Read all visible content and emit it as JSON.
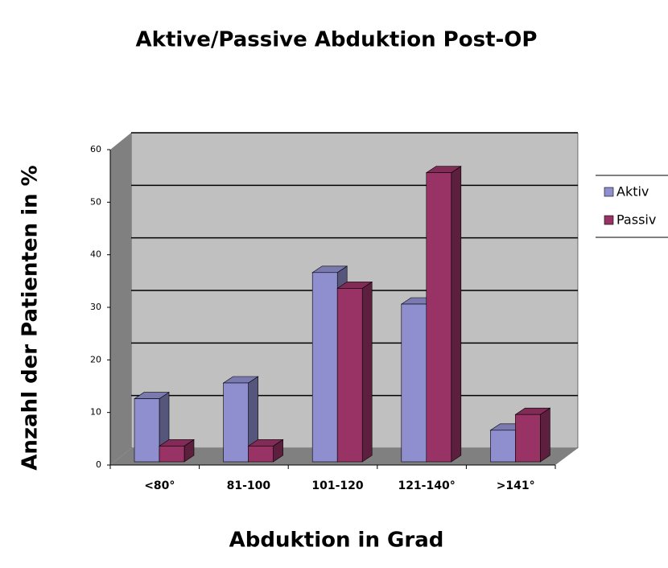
{
  "chart_data": {
    "type": "bar3d",
    "title": "Aktive/Passive Abduktion Post-OP",
    "x_label": "Abduktion in Grad",
    "y_label": "Anzahl der Patienten in %",
    "categories": [
      "<80°",
      "81-100",
      "101-120",
      "121-140°",
      ">141°"
    ],
    "series": [
      {
        "name": "Aktiv",
        "color": "#8f8fd0",
        "values": [
          12,
          15,
          36,
          30,
          6
        ]
      },
      {
        "name": "Passiv",
        "color": "#993366",
        "values": [
          3,
          3,
          33,
          55,
          9
        ]
      }
    ],
    "ylim": [
      0,
      60
    ],
    "yticks": [
      0,
      10,
      20,
      30,
      40,
      50,
      60
    ],
    "grid": true,
    "legend": "right"
  }
}
